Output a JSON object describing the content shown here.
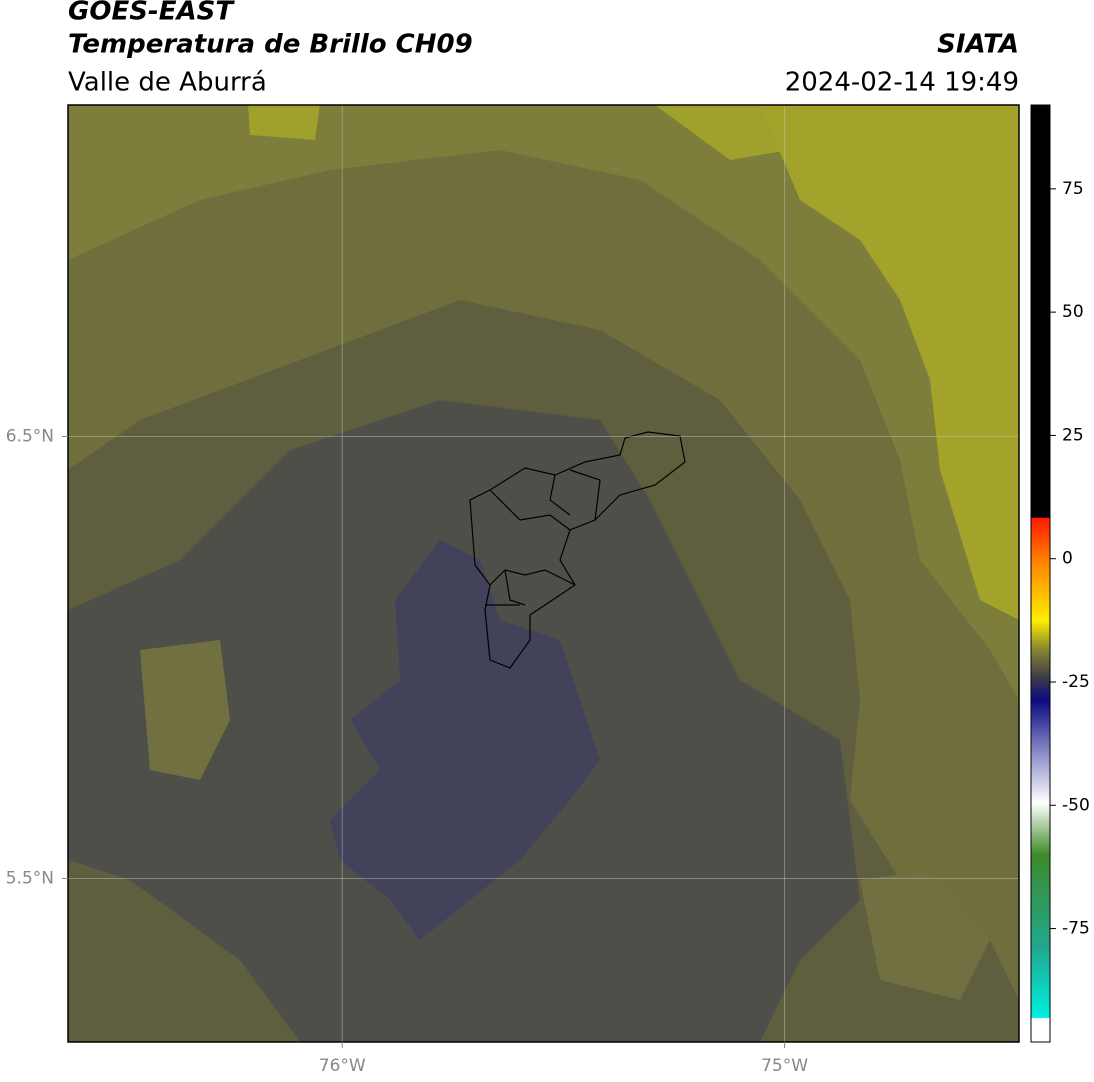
{
  "header": {
    "title": "GOES-EAST",
    "subtitle": "Temperatura de Brillo CH09",
    "region": "Valle de Aburrá",
    "source": "SIATA",
    "datetime": "2024-02-14 19:49"
  },
  "map": {
    "xlim": [
      -76.62,
      -74.47
    ],
    "ylim": [
      5.13,
      7.25
    ],
    "xticks": [
      {
        "value": -76,
        "label": "76°W"
      },
      {
        "value": -75,
        "label": "75°W"
      }
    ],
    "yticks": [
      {
        "value": 5.5,
        "label": "5.5°N"
      },
      {
        "value": 6.5,
        "label": "6.5°N"
      }
    ],
    "grid": true
  },
  "colorbar": {
    "lim": [
      -98,
      92
    ],
    "ticks": [
      -75,
      -50,
      -25,
      0,
      25,
      50,
      75
    ]
  }
}
